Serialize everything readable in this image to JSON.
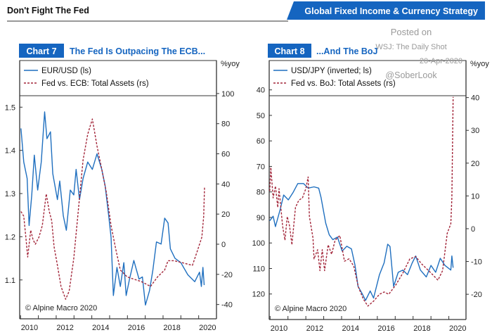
{
  "header": {
    "left_title": "Don't Fight The Fed",
    "right_banner": "Global Fixed Income & Currency Strategy",
    "brand_color": "#1565c0"
  },
  "watermark": {
    "line1": "Posted on",
    "line2": "WSJ: The Daily Shot",
    "line3": "20-Apr-2020",
    "line4": "@SoberLook"
  },
  "chart_data": [
    {
      "type": "line",
      "label": "Chart 7",
      "title": "The Fed Is Outpacing The ECB...",
      "right_unit": "%yoy",
      "copyright": "© Alpine Macro 2020",
      "xlim": [
        2009.45,
        2020.5
      ],
      "x_ticks": [
        "2010",
        "2012",
        "2014",
        "2016",
        "2018",
        "2020"
      ],
      "ylim_left": [
        1.01,
        1.608
      ],
      "y_ticks_left": [
        "1.1",
        "1.2",
        "1.3",
        "1.4",
        "1.5"
      ],
      "ylim_right": [
        -49.5,
        121.9
      ],
      "y_ticks_right": [
        "-40",
        "-20",
        "0",
        "20",
        "40",
        "60",
        "80",
        "100"
      ],
      "grid": false,
      "legend_position": "top-left",
      "series": [
        {
          "name": "EUR/USD (ls)",
          "axis": "left",
          "style": "solid",
          "color": "#1f6fbf",
          "x": [
            2009.52,
            2009.68,
            2009.87,
            2009.98,
            2010.13,
            2010.27,
            2010.46,
            2010.66,
            2010.85,
            2010.98,
            2011.18,
            2011.31,
            2011.57,
            2011.7,
            2011.9,
            2012.07,
            2012.29,
            2012.49,
            2012.62,
            2012.81,
            2013.01,
            2013.27,
            2013.53,
            2013.79,
            2014.06,
            2014.25,
            2014.45,
            2014.58,
            2014.71,
            2014.91,
            2015.1,
            2015.3,
            2015.43,
            2015.62,
            2015.86,
            2016.15,
            2016.34,
            2016.51,
            2016.74,
            2016.93,
            2017.13,
            2017.39,
            2017.59,
            2017.78,
            2017.91,
            2018.17,
            2018.5,
            2018.89,
            2019.28,
            2019.55,
            2019.65,
            2019.74,
            2019.81
          ],
          "y": [
            1.451,
            1.373,
            1.335,
            1.226,
            1.297,
            1.389,
            1.308,
            1.373,
            1.489,
            1.427,
            1.443,
            1.346,
            1.286,
            1.329,
            1.248,
            1.215,
            1.308,
            1.297,
            1.356,
            1.286,
            1.335,
            1.373,
            1.356,
            1.392,
            1.356,
            1.318,
            1.248,
            1.199,
            1.064,
            1.129,
            1.085,
            1.14,
            1.064,
            1.102,
            1.145,
            1.102,
            1.107,
            1.042,
            1.075,
            1.123,
            1.188,
            1.183,
            1.243,
            1.232,
            1.172,
            1.15,
            1.14,
            1.112,
            1.096,
            1.118,
            1.085,
            1.129,
            1.088
          ]
        },
        {
          "name": "Fed vs. ECB: Total Assets (rs)",
          "axis": "right",
          "style": "dashed",
          "color": "#a3263a",
          "x": [
            2009.52,
            2009.68,
            2009.81,
            2009.9,
            2010.07,
            2010.2,
            2010.33,
            2010.53,
            2010.72,
            2010.94,
            2011.11,
            2011.25,
            2011.38,
            2011.57,
            2011.77,
            2012.03,
            2012.23,
            2012.49,
            2012.75,
            2013.01,
            2013.27,
            2013.53,
            2013.79,
            2014.06,
            2014.32,
            2014.58,
            2014.84,
            2015.1,
            2015.49,
            2015.89,
            2016.28,
            2016.8,
            2017.19,
            2017.59,
            2017.78,
            2018.11,
            2018.63,
            2019.15,
            2019.42,
            2019.68,
            2019.78,
            2019.83
          ],
          "y": [
            21.7,
            18.6,
            3.1,
            -8.5,
            9.3,
            3.1,
            0,
            4.7,
            12.4,
            33.4,
            21.7,
            15.5,
            -1.6,
            -14.0,
            -28.0,
            -36.5,
            -31.1,
            -9.3,
            23.3,
            55.9,
            73.0,
            83.1,
            65.2,
            49.7,
            34.2,
            12.4,
            -3.1,
            -17.1,
            -21.7,
            -23.3,
            -24.8,
            -28.0,
            -21.7,
            -17.1,
            -10.9,
            -10.9,
            -12.4,
            -14.0,
            -4.7,
            4.7,
            18.6,
            38.0
          ]
        }
      ]
    },
    {
      "type": "line",
      "label": "Chart 8",
      "title": "...And The BoJ",
      "right_unit": "%yoy",
      "copyright": "© Alpine Macro 2020",
      "xlim": [
        2009.45,
        2020.46
      ],
      "x_ticks": [
        "2010",
        "2012",
        "2014",
        "2016",
        "2018",
        "2020"
      ],
      "ylim_left": [
        28.5,
        130
      ],
      "left_inverted": true,
      "y_ticks_left": [
        "40",
        "50",
        "60",
        "70",
        "80",
        "90",
        "100",
        "110",
        "120"
      ],
      "ylim_right": [
        -27.7,
        51.3
      ],
      "y_ticks_right": [
        "-20",
        "-10",
        "0",
        "10",
        "20",
        "30",
        "40"
      ],
      "grid": false,
      "legend_position": "top-left",
      "series": [
        {
          "name": "USD/JPY (inverted; ls)",
          "axis": "left",
          "style": "solid",
          "color": "#1f6fbf",
          "x": [
            2009.48,
            2009.67,
            2009.8,
            2010.07,
            2010.26,
            2010.52,
            2010.78,
            2011.05,
            2011.37,
            2011.63,
            2011.96,
            2012.22,
            2012.35,
            2012.61,
            2012.81,
            2013.01,
            2013.27,
            2013.53,
            2013.79,
            2014.05,
            2014.25,
            2014.42,
            2014.64,
            2014.84,
            2015.1,
            2015.29,
            2015.62,
            2015.88,
            2016.08,
            2016.21,
            2016.41,
            2016.67,
            2016.93,
            2017.19,
            2017.45,
            2017.65,
            2017.91,
            2018.24,
            2018.5,
            2018.76,
            2019.02,
            2019.28,
            2019.61,
            2019.67,
            2019.74
          ],
          "y": [
            91.3,
            89.5,
            93.6,
            86.7,
            81.2,
            83.1,
            80.3,
            76.7,
            76.7,
            78.5,
            78.0,
            78.5,
            82.2,
            92.2,
            96.8,
            98.7,
            97.7,
            103.2,
            101.3,
            102.3,
            108.7,
            117.0,
            119.7,
            122.5,
            118.8,
            121.6,
            112.4,
            107.8,
            100.5,
            101.4,
            117.0,
            111.5,
            110.6,
            112.4,
            107.8,
            105.1,
            110.6,
            113.3,
            108.8,
            111.5,
            106.0,
            108.8,
            110.6,
            105.1,
            109.7
          ]
        },
        {
          "name": "Fed vs. BoJ: Total Assets (rs)",
          "axis": "right",
          "style": "dashed",
          "color": "#a3263a",
          "x": [
            2009.48,
            2009.54,
            2009.67,
            2009.8,
            2009.93,
            2010.0,
            2010.2,
            2010.33,
            2010.46,
            2010.59,
            2010.72,
            2010.92,
            2011.11,
            2011.31,
            2011.5,
            2011.63,
            2011.7,
            2011.9,
            2011.96,
            2012.16,
            2012.29,
            2012.42,
            2012.55,
            2012.75,
            2012.94,
            2013.14,
            2013.4,
            2013.66,
            2013.92,
            2014.18,
            2014.44,
            2014.71,
            2014.97,
            2015.29,
            2015.62,
            2015.88,
            2016.14,
            2016.54,
            2016.93,
            2017.32,
            2017.65,
            2017.97,
            2018.5,
            2018.89,
            2019.15,
            2019.41,
            2019.61,
            2019.67,
            2019.74
          ],
          "y": [
            11.5,
            18.7,
            9.4,
            13.0,
            6.5,
            12.2,
            0.8,
            -3.5,
            3.7,
            0.8,
            -4.9,
            6.5,
            8.7,
            9.4,
            12.2,
            15.8,
            3.7,
            -2.8,
            -9.2,
            -6.4,
            -12.8,
            -6.4,
            -12.8,
            -4.9,
            -7.8,
            -3.5,
            -2.1,
            -9.9,
            -9.2,
            -11.4,
            -17.8,
            -21.4,
            -23.6,
            -22.1,
            -20.0,
            -19.3,
            -20.0,
            -17.1,
            -13.5,
            -9.2,
            -8.5,
            -10.7,
            -13.5,
            -15.7,
            -12.8,
            -1.4,
            1.5,
            9.4,
            40.2
          ]
        }
      ]
    }
  ]
}
